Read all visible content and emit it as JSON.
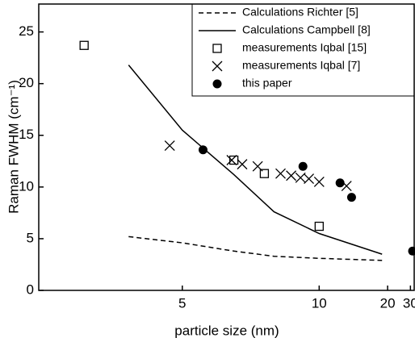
{
  "chart_data": {
    "type": "line",
    "xlabel": "particle size (nm)",
    "ylabel": "Raman FWHM (cm⁻¹)",
    "xscale": "reciprocal",
    "xlim": [
      3.28,
      32.7
    ],
    "xticks": [
      5,
      10,
      20,
      30
    ],
    "ylim": [
      0,
      27.7
    ],
    "yticks": [
      0,
      5,
      10,
      15,
      20,
      25
    ],
    "legend": "upper right",
    "series": [
      {
        "name": "Calculations Richter [5]",
        "color": "#000000",
        "style": "dashed",
        "x": [
          4.18,
          5,
          6.16,
          7.52,
          10,
          18.5
        ],
        "values": [
          5.2,
          4.6,
          3.8,
          3.3,
          3.1,
          2.9
        ]
      },
      {
        "name": "Calculations Campbell [8]",
        "color": "#000000",
        "style": "solid",
        "x": [
          4.18,
          5,
          6.16,
          7.52,
          10,
          18.5
        ],
        "values": [
          21.8,
          15.5,
          11.2,
          7.6,
          5.5,
          3.5
        ]
      },
      {
        "name": "measurements Iqbal [15]",
        "color": "#000000",
        "style": "square",
        "x": [
          3.68,
          6.16,
          7.14,
          10
        ],
        "values": [
          23.7,
          12.6,
          11.3,
          6.2
        ]
      },
      {
        "name": "measurements Iqbal [7]",
        "color": "#000000",
        "style": "cross",
        "x": [
          4.78,
          6.1,
          6.4,
          6.9,
          7.8,
          8.3,
          8.8,
          9.3,
          10,
          12.5
        ],
        "values": [
          14,
          12.6,
          12.2,
          12,
          11.3,
          11.1,
          10.9,
          10.8,
          10.5,
          10.1
        ]
      },
      {
        "name": "this paper",
        "color": "#000000",
        "style": "dot",
        "x": [
          5.41,
          8.94,
          11.8,
          13.1,
          31.5
        ],
        "values": [
          13.6,
          12,
          10.4,
          9,
          3.8
        ]
      }
    ]
  }
}
